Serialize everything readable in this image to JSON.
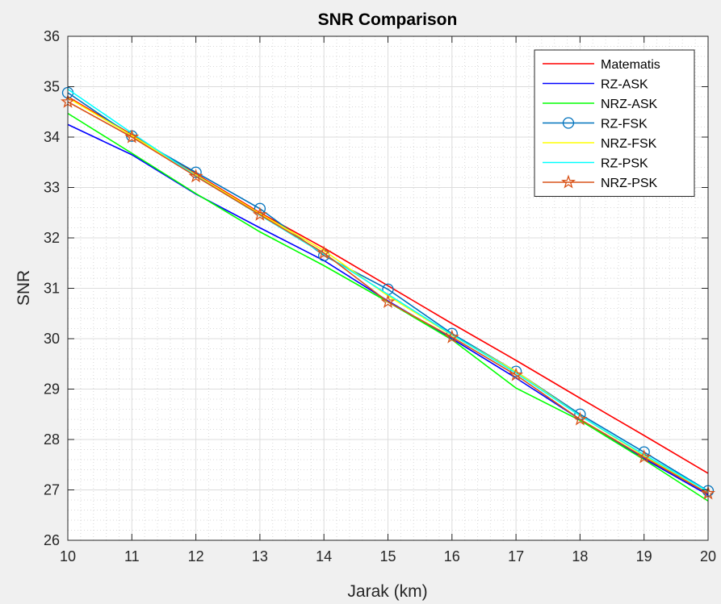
{
  "chart_data": {
    "type": "line",
    "title": "SNR Comparison",
    "xlabel": "Jarak (km)",
    "ylabel": "SNR",
    "xlim": [
      10,
      20
    ],
    "ylim": [
      26,
      36
    ],
    "x_ticks": [
      10,
      11,
      12,
      13,
      14,
      15,
      16,
      17,
      18,
      19,
      20
    ],
    "y_ticks": [
      26,
      27,
      28,
      29,
      30,
      31,
      32,
      33,
      34,
      35,
      36
    ],
    "grid": true,
    "minor_grid": true,
    "legend_position": "top-right",
    "x": [
      10,
      11,
      12,
      13,
      14,
      15,
      16,
      17,
      18,
      19,
      20
    ],
    "series": [
      {
        "name": "Matematis",
        "color": "#ff0000",
        "marker": "none",
        "values": [
          34.8,
          34.05,
          33.27,
          32.5,
          31.8,
          31.05,
          30.3,
          29.57,
          28.82,
          28.08,
          27.33
        ]
      },
      {
        "name": "RZ-ASK",
        "color": "#0000ff",
        "marker": "none",
        "values": [
          34.25,
          33.65,
          32.87,
          32.2,
          31.55,
          30.75,
          30.0,
          29.22,
          28.4,
          27.62,
          26.9
        ]
      },
      {
        "name": "NRZ-ASK",
        "color": "#00ff00",
        "marker": "none",
        "values": [
          34.47,
          33.68,
          32.88,
          32.12,
          31.45,
          30.73,
          29.98,
          29.02,
          28.38,
          27.6,
          26.78
        ]
      },
      {
        "name": "RZ-FSK",
        "color": "#0072bd",
        "marker": "circle",
        "values": [
          34.88,
          34.02,
          33.3,
          32.58,
          31.65,
          30.98,
          30.1,
          29.35,
          28.5,
          27.75,
          26.98
        ]
      },
      {
        "name": "NRZ-FSK",
        "color": "#ffff00",
        "marker": "none",
        "values": [
          34.78,
          34.03,
          33.25,
          32.48,
          31.75,
          30.85,
          30.07,
          29.35,
          28.47,
          27.68,
          26.93
        ]
      },
      {
        "name": "RZ-PSK",
        "color": "#00ffff",
        "marker": "none",
        "values": [
          34.95,
          34.08,
          33.23,
          32.45,
          31.68,
          30.88,
          30.08,
          29.32,
          28.47,
          27.7,
          26.97
        ]
      },
      {
        "name": "NRZ-PSK",
        "color": "#d95319",
        "marker": "pentagram",
        "values": [
          34.7,
          34.0,
          33.22,
          32.46,
          31.7,
          30.73,
          30.03,
          29.28,
          28.4,
          27.65,
          26.93
        ]
      }
    ]
  }
}
